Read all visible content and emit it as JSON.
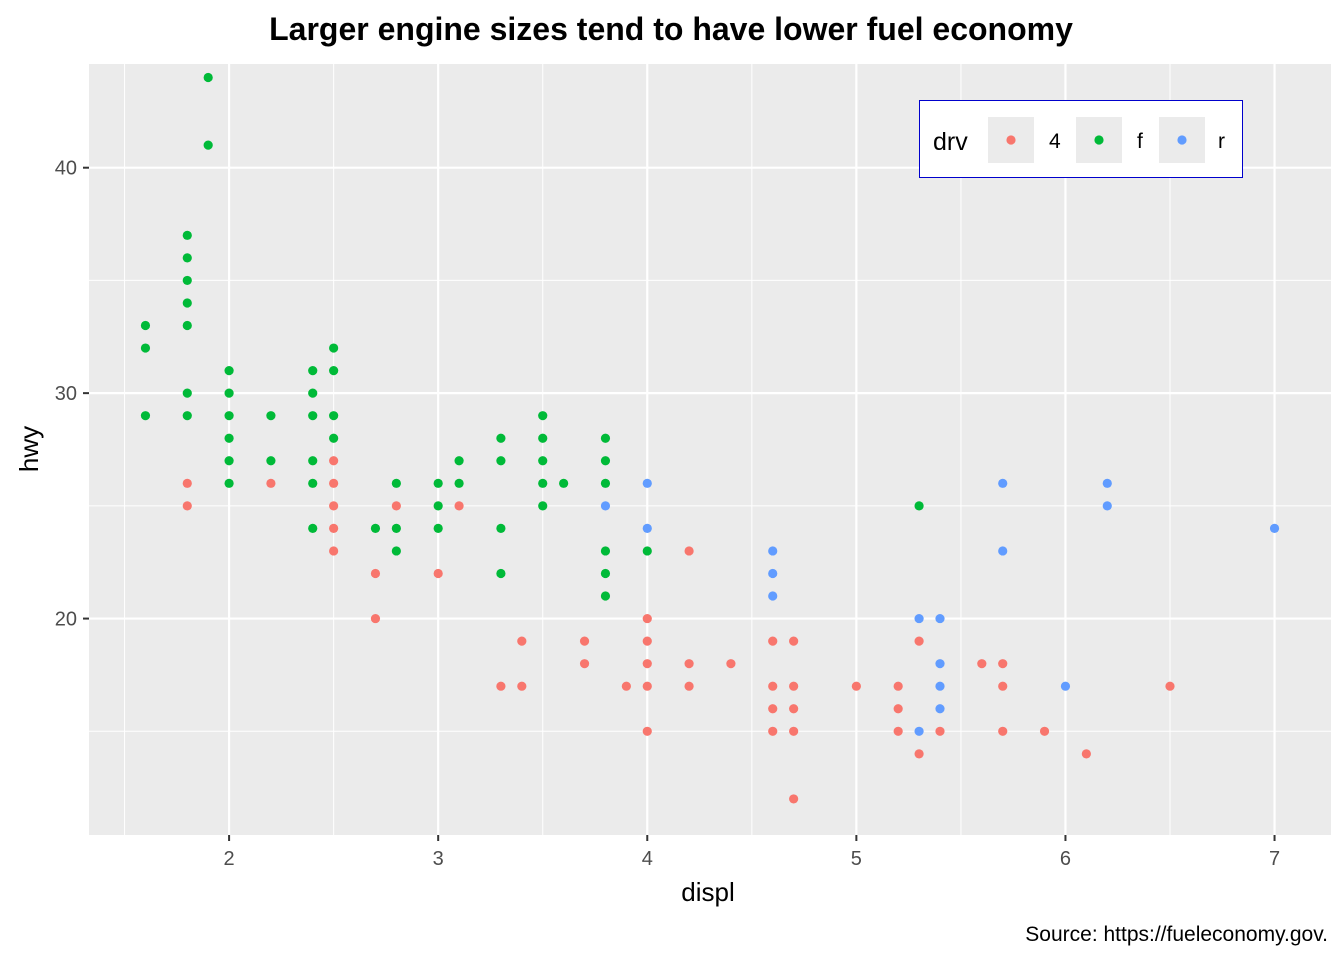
{
  "chart_data": {
    "type": "scatter",
    "title": "Larger engine sizes tend to have lower fuel economy",
    "xlabel": "displ",
    "ylabel": "hwy",
    "caption": "Source: https://fueleconomy.gov.",
    "xlim": [
      1.33,
      7.27
    ],
    "ylim": [
      10.4,
      44.6
    ],
    "x_ticks": [
      2,
      3,
      4,
      5,
      6,
      7
    ],
    "y_ticks": [
      20,
      30,
      40
    ],
    "grid": true,
    "legend": {
      "title": "drv",
      "position": "top-right",
      "border_color": "#0000cc",
      "entries": [
        {
          "label": "4",
          "color": "#F8766D"
        },
        {
          "label": "f",
          "color": "#00BA38"
        },
        {
          "label": "r",
          "color": "#619CFF"
        }
      ]
    },
    "series": [
      {
        "name": "4",
        "color": "#F8766D",
        "points": [
          [
            1.8,
            26
          ],
          [
            1.8,
            25
          ],
          [
            2.2,
            26
          ],
          [
            2.5,
            27
          ],
          [
            2.5,
            26
          ],
          [
            2.5,
            25
          ],
          [
            2.5,
            24
          ],
          [
            2.5,
            23
          ],
          [
            2.7,
            22
          ],
          [
            2.7,
            20
          ],
          [
            2.8,
            25
          ],
          [
            3.0,
            22
          ],
          [
            3.1,
            25
          ],
          [
            3.3,
            17
          ],
          [
            3.4,
            19
          ],
          [
            3.4,
            17
          ],
          [
            3.7,
            19
          ],
          [
            3.7,
            18
          ],
          [
            3.9,
            17
          ],
          [
            4.0,
            20
          ],
          [
            4.0,
            19
          ],
          [
            4.0,
            18
          ],
          [
            4.0,
            17
          ],
          [
            4.0,
            15
          ],
          [
            4.2,
            23
          ],
          [
            4.2,
            18
          ],
          [
            4.2,
            17
          ],
          [
            4.4,
            18
          ],
          [
            4.6,
            19
          ],
          [
            4.6,
            17
          ],
          [
            4.6,
            16
          ],
          [
            4.6,
            15
          ],
          [
            4.7,
            19
          ],
          [
            4.7,
            17
          ],
          [
            4.7,
            16
          ],
          [
            4.7,
            15
          ],
          [
            4.7,
            12
          ],
          [
            5.0,
            17
          ],
          [
            5.2,
            17
          ],
          [
            5.2,
            16
          ],
          [
            5.2,
            15
          ],
          [
            5.3,
            19
          ],
          [
            5.3,
            14
          ],
          [
            5.4,
            15
          ],
          [
            5.6,
            18
          ],
          [
            5.7,
            18
          ],
          [
            5.7,
            17
          ],
          [
            5.7,
            15
          ],
          [
            5.9,
            15
          ],
          [
            6.1,
            14
          ],
          [
            6.5,
            17
          ]
        ]
      },
      {
        "name": "f",
        "color": "#00BA38",
        "points": [
          [
            1.6,
            33
          ],
          [
            1.6,
            32
          ],
          [
            1.6,
            29
          ],
          [
            1.8,
            37
          ],
          [
            1.8,
            36
          ],
          [
            1.8,
            35
          ],
          [
            1.8,
            34
          ],
          [
            1.8,
            33
          ],
          [
            1.8,
            30
          ],
          [
            1.8,
            29
          ],
          [
            1.9,
            44
          ],
          [
            1.9,
            41
          ],
          [
            2.0,
            31
          ],
          [
            2.0,
            30
          ],
          [
            2.0,
            29
          ],
          [
            2.0,
            28
          ],
          [
            2.0,
            27
          ],
          [
            2.0,
            26
          ],
          [
            2.2,
            29
          ],
          [
            2.2,
            27
          ],
          [
            2.4,
            31
          ],
          [
            2.4,
            30
          ],
          [
            2.4,
            29
          ],
          [
            2.4,
            27
          ],
          [
            2.4,
            26
          ],
          [
            2.4,
            24
          ],
          [
            2.5,
            32
          ],
          [
            2.5,
            31
          ],
          [
            2.5,
            29
          ],
          [
            2.5,
            28
          ],
          [
            2.7,
            24
          ],
          [
            2.8,
            26
          ],
          [
            2.8,
            24
          ],
          [
            2.8,
            23
          ],
          [
            3.0,
            26
          ],
          [
            3.0,
            25
          ],
          [
            3.0,
            24
          ],
          [
            3.1,
            27
          ],
          [
            3.1,
            26
          ],
          [
            3.3,
            28
          ],
          [
            3.3,
            27
          ],
          [
            3.3,
            24
          ],
          [
            3.3,
            22
          ],
          [
            3.5,
            29
          ],
          [
            3.5,
            28
          ],
          [
            3.5,
            27
          ],
          [
            3.5,
            26
          ],
          [
            3.5,
            25
          ],
          [
            3.6,
            26
          ],
          [
            3.8,
            28
          ],
          [
            3.8,
            27
          ],
          [
            3.8,
            26
          ],
          [
            3.8,
            23
          ],
          [
            3.8,
            22
          ],
          [
            3.8,
            21
          ],
          [
            4.0,
            23
          ],
          [
            5.3,
            25
          ]
        ]
      },
      {
        "name": "r",
        "color": "#619CFF",
        "points": [
          [
            3.8,
            25
          ],
          [
            4.0,
            26
          ],
          [
            4.0,
            24
          ],
          [
            4.6,
            23
          ],
          [
            4.6,
            22
          ],
          [
            4.6,
            21
          ],
          [
            5.3,
            20
          ],
          [
            5.3,
            15
          ],
          [
            5.4,
            20
          ],
          [
            5.4,
            18
          ],
          [
            5.4,
            17
          ],
          [
            5.4,
            16
          ],
          [
            5.7,
            26
          ],
          [
            5.7,
            23
          ],
          [
            6.0,
            17
          ],
          [
            6.2,
            26
          ],
          [
            6.2,
            25
          ],
          [
            7.0,
            24
          ]
        ]
      }
    ]
  }
}
